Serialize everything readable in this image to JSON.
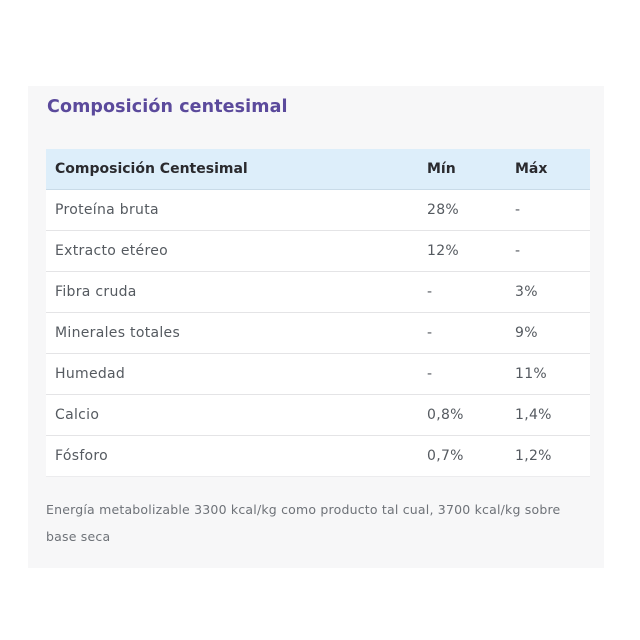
{
  "section": {
    "title": "Composición centesimal"
  },
  "table": {
    "headers": [
      "Composición Centesimal",
      "Mín",
      "Máx"
    ],
    "rows": [
      [
        "Proteína bruta",
        "28%",
        "-"
      ],
      [
        "Extracto etéreo",
        "12%",
        "-"
      ],
      [
        "Fibra cruda",
        "-",
        "3%"
      ],
      [
        "Minerales totales",
        "-",
        "9%"
      ],
      [
        "Humedad",
        "-",
        "11%"
      ],
      [
        "Calcio",
        "0,8%",
        "1,4%"
      ],
      [
        "Fósforo",
        "0,7%",
        "1,2%"
      ]
    ]
  },
  "footnote": "Energía metabolizable 3300 kcal/kg como producto tal cual, 3700 kcal/kg sobre base seca",
  "colors": {
    "title": "#5b4a9c",
    "header_bg": "#ddeefa",
    "card_bg": "#f7f7f8"
  }
}
